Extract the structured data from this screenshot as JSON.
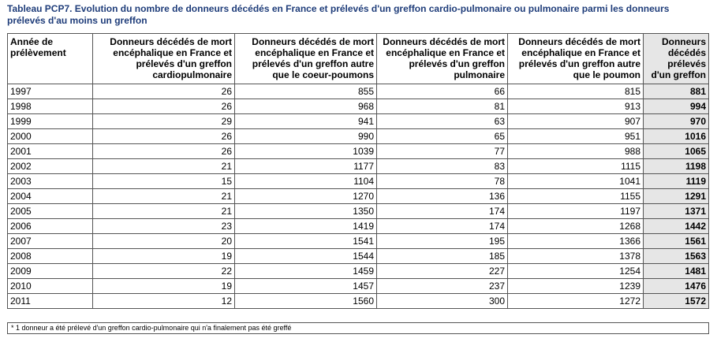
{
  "title": "Tableau PCP7. Evolution du nombre de donneurs décédés en France et prélevés d'un greffon cardio-pulmonaire ou pulmonaire parmi les donneurs prélevés d'au moins un greffon",
  "columns": [
    "Année de prélèvement",
    "Donneurs décédés de mort encéphalique en France et prélevés d'un greffon cardiopulmonaire",
    "Donneurs décédés de mort encéphalique en France et prélevés d'un greffon autre que le coeur-poumons",
    "Donneurs décédés de mort encéphalique en France et prélevés d'un greffon pulmonaire",
    "Donneurs décédés de mort encéphalique en France et prélevés d'un greffon autre que le poumon",
    "Donneurs décédés prélevés d'un greffon"
  ],
  "rows": [
    [
      "1997",
      "26",
      "855",
      "66",
      "815",
      "881"
    ],
    [
      "1998",
      "26",
      "968",
      "81",
      "913",
      "994"
    ],
    [
      "1999",
      "29",
      "941",
      "63",
      "907",
      "970"
    ],
    [
      "2000",
      "26",
      "990",
      "65",
      "951",
      "1016"
    ],
    [
      "2001",
      "26",
      "1039",
      "77",
      "988",
      "1065"
    ],
    [
      "2002",
      "21",
      "1177",
      "83",
      "1115",
      "1198"
    ],
    [
      "2003",
      "15",
      "1104",
      "78",
      "1041",
      "1119"
    ],
    [
      "2004",
      "21",
      "1270",
      "136",
      "1155",
      "1291"
    ],
    [
      "2005",
      "21",
      "1350",
      "174",
      "1197",
      "1371"
    ],
    [
      "2006",
      "23",
      "1419",
      "174",
      "1268",
      "1442"
    ],
    [
      "2007",
      "20",
      "1541",
      "195",
      "1366",
      "1561"
    ],
    [
      "2008",
      "19",
      "1544",
      "185",
      "1378",
      "1563"
    ],
    [
      "2009",
      "22",
      "1459",
      "227",
      "1254",
      "1481"
    ],
    [
      "2010",
      "19",
      "1457",
      "237",
      "1239",
      "1476"
    ],
    [
      "2011",
      "12",
      "1560",
      "300",
      "1272",
      "1572"
    ]
  ],
  "footnote": "* 1 donneur a été prélevé d'un greffon cardio-pulmonaire qui n'a finalement pas été greffé",
  "colors": {
    "title": "#1f3d7a",
    "total_column_bg": "#e6e6e6",
    "border": "#555555"
  }
}
